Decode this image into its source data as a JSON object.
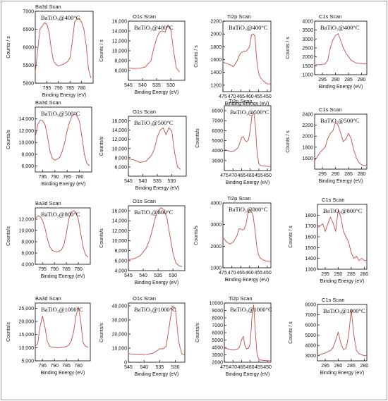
{
  "figure": {
    "line_color": "#c0504d",
    "frame_color": "#000000",
    "border_color": "#999999"
  },
  "chart_data": [
    {
      "type": "line",
      "title": "Ba3d Scan",
      "annotation": "BaTiO₃@400°C",
      "xlabel": "Binding Energy (eV)",
      "ylabel": "Counts / s",
      "xlim": [
        800,
        775
      ],
      "ylim": [
        5000,
        7000
      ],
      "xticks": [
        795,
        790,
        785,
        780
      ],
      "yticks": [
        5000,
        5500,
        6000,
        6500,
        7000
      ],
      "ytick_format": "plain",
      "x": [
        800,
        798,
        796,
        795,
        794,
        793,
        792,
        791,
        790,
        789,
        788,
        787,
        786,
        785,
        784,
        783,
        782,
        781,
        780,
        779,
        778,
        777,
        776
      ],
      "y": [
        5300,
        6500,
        6680,
        6650,
        6400,
        5900,
        5600,
        5520,
        5480,
        5500,
        5520,
        5560,
        5600,
        5700,
        6150,
        6700,
        6780,
        6800,
        6700,
        6500,
        6050,
        5400,
        5150
      ]
    },
    {
      "type": "line",
      "title": "O1s Scan",
      "annotation": "BaTiO₃@400°C",
      "xlabel": "Binding Energy (eV)",
      "ylabel": "Counts / s",
      "xlim": [
        545,
        525
      ],
      "ylim": [
        4000,
        16000
      ],
      "xticks": [
        545,
        540,
        535,
        530
      ],
      "yticks": [
        6000,
        8000,
        10000,
        12000,
        14000,
        16000
      ],
      "ytick_format": "comma",
      "x": [
        545,
        543,
        541,
        539,
        537,
        536,
        535,
        534,
        533,
        532,
        531,
        530,
        529,
        528,
        527
      ],
      "y": [
        6500,
        6400,
        6450,
        6700,
        8000,
        10500,
        12500,
        13800,
        14000,
        13800,
        15200,
        14500,
        10000,
        6500,
        5800
      ]
    },
    {
      "type": "line",
      "title": "Ti2p Scan",
      "annotation": "BaTiO₃@400°C",
      "xlabel": "Binding Energy (eV)",
      "ylabel": "Counts / s",
      "xlim": [
        475,
        448
      ],
      "ylim": [
        1100,
        2200
      ],
      "xticks": [
        475,
        470,
        465,
        460,
        455,
        450
      ],
      "yticks": [
        1200,
        1400,
        1600,
        1800,
        2000,
        2200
      ],
      "ytick_format": "plain",
      "x": [
        475,
        473,
        471,
        469,
        467,
        466,
        465,
        464,
        463,
        462,
        461,
        460,
        459,
        458,
        457,
        456,
        455,
        454,
        452,
        450,
        448
      ],
      "y": [
        1560,
        1540,
        1520,
        1490,
        1580,
        1650,
        1700,
        1720,
        1720,
        1730,
        1760,
        1800,
        1980,
        2000,
        1970,
        1600,
        1400,
        1320,
        1260,
        1220,
        1220
      ]
    },
    {
      "type": "line",
      "title": "C1s Scan",
      "annotation": "BaTiO₃@400°C",
      "xlabel": "Binding Energy (eV)",
      "ylabel": "Counts / s",
      "xlim": [
        298,
        278
      ],
      "ylim": [
        1000,
        4000
      ],
      "xticks": [
        295,
        290,
        285,
        280
      ],
      "yticks": [
        1000,
        1500,
        2000,
        2500,
        3000,
        3500,
        4000
      ],
      "ytick_format": "plain",
      "x": [
        298,
        296,
        294,
        293,
        292,
        291,
        290,
        289,
        288,
        287,
        286,
        285,
        284,
        282,
        280,
        278
      ],
      "y": [
        1550,
        1560,
        1600,
        1800,
        2500,
        2950,
        3200,
        3300,
        2900,
        2500,
        2200,
        2000,
        1800,
        1650,
        1620,
        1600
      ]
    },
    {
      "type": "line",
      "title": "Ba3d Scan",
      "annotation": "BaTiO₃@500°C",
      "xlabel": "Binding Energy (eV)",
      "ylabel": "Counts/s",
      "xlim": [
        798,
        775
      ],
      "ylim": [
        5000,
        16000
      ],
      "xticks": [
        795,
        790,
        785,
        780
      ],
      "yticks": [
        6000,
        8000,
        10000,
        12000,
        14000
      ],
      "ytick_format": "comma",
      "x": [
        798,
        797,
        796,
        795,
        794,
        793,
        792,
        791,
        790,
        789,
        788,
        787,
        786,
        785,
        784,
        783,
        782,
        781,
        780,
        779,
        778,
        777,
        776
      ],
      "y": [
        11000,
        13000,
        13800,
        13700,
        13000,
        11000,
        8500,
        7300,
        7000,
        7200,
        7500,
        8500,
        10000,
        12000,
        13500,
        14500,
        14800,
        14500,
        13600,
        11000,
        8000,
        6500,
        6100
      ]
    },
    {
      "type": "line",
      "title": "O1s Scan",
      "annotation": "BaTiO₃@500°C",
      "xlabel": "Binding Energy (eV)",
      "ylabel": "Counts/s",
      "xlim": [
        545,
        525
      ],
      "ylim": [
        4000,
        17000
      ],
      "xticks": [
        545,
        540,
        535,
        530
      ],
      "yticks": [
        6000,
        8000,
        10000,
        12000,
        14000,
        16000
      ],
      "ytick_format": "comma",
      "x": [
        545,
        543,
        541,
        539,
        537,
        536,
        535,
        534,
        533,
        532,
        531,
        530,
        529,
        528,
        527
      ],
      "y": [
        7800,
        7500,
        7000,
        7200,
        8500,
        10000,
        12500,
        14000,
        14500,
        13000,
        14500,
        13800,
        9000,
        6000,
        5500
      ]
    },
    {
      "type": "line",
      "title": "Ti2p Scan",
      "annotation": "BaTiO₃@500°C",
      "xlabel": "Binding Energy (eV)",
      "ylabel": "Counts/s",
      "xlim": [
        475,
        448
      ],
      "ylim": [
        2000,
        8500
      ],
      "xticks": [
        475,
        470,
        465,
        460,
        455,
        450
      ],
      "yticks": [
        3000,
        4000,
        5000,
        6000,
        7000,
        8000
      ],
      "ytick_format": "plain",
      "x": [
        475,
        473,
        471,
        469,
        467,
        466,
        465,
        464,
        463,
        462,
        461,
        460,
        459,
        458,
        457,
        456,
        455,
        454,
        452,
        450,
        448
      ],
      "y": [
        4100,
        4000,
        3900,
        4000,
        4300,
        4800,
        5300,
        5400,
        5000,
        4900,
        5100,
        6000,
        7500,
        7900,
        6500,
        3800,
        2700,
        2500,
        2450,
        2420,
        2400
      ]
    },
    {
      "type": "line",
      "title": "C1s Scan",
      "annotation": "BaTiO₃@500°C",
      "xlabel": "Binding Energy (eV)",
      "ylabel": "Counts / s",
      "xlim": [
        298,
        278
      ],
      "ylim": [
        1400,
        2400
      ],
      "xticks": [
        295,
        290,
        285,
        280
      ],
      "yticks": [
        1600,
        1800,
        2000,
        2200,
        2400
      ],
      "ytick_format": "plain",
      "x": [
        298,
        296,
        294,
        293,
        292,
        291,
        290,
        289,
        288,
        287,
        286,
        285,
        284,
        283,
        282,
        281,
        280,
        278
      ],
      "y": [
        1550,
        1700,
        1800,
        1950,
        2050,
        2100,
        2250,
        2200,
        2050,
        1900,
        1950,
        2050,
        1950,
        1750,
        1600,
        1520,
        1480,
        1460
      ]
    },
    {
      "type": "line",
      "title": "Ba3d Scan",
      "annotation": "BaTiO₃@800°C",
      "xlabel": "Binding Energy (eV)",
      "ylabel": "Counts/s",
      "xlim": [
        798,
        775
      ],
      "ylim": [
        4000,
        14000
      ],
      "xticks": [
        795,
        790,
        785,
        780
      ],
      "yticks": [
        4000,
        6000,
        8000,
        10000,
        12000
      ],
      "ytick_format": "comma",
      "x": [
        798,
        797,
        796,
        795,
        794,
        793,
        792,
        791,
        790,
        789,
        788,
        787,
        786,
        785,
        784,
        783,
        782,
        781,
        780,
        779,
        778,
        777,
        776
      ],
      "y": [
        12000,
        12600,
        12500,
        11800,
        10500,
        8600,
        7200,
        6500,
        6300,
        6200,
        6300,
        6600,
        7500,
        9500,
        12000,
        13300,
        13500,
        13200,
        12000,
        9500,
        7000,
        5700,
        5300
      ]
    },
    {
      "type": "line",
      "title": "O1s Scan",
      "annotation": "BaTiO₃@800°C",
      "xlabel": "Binding Energy (eV)",
      "ylabel": "Counts/s",
      "xlim": [
        545,
        526
      ],
      "ylim": [
        4000,
        17000
      ],
      "xticks": [
        545,
        540,
        535,
        530
      ],
      "yticks": [
        4000,
        6000,
        8000,
        10000,
        12000,
        14000,
        16000
      ],
      "ytick_format": "comma",
      "x": [
        545,
        543,
        541,
        539,
        538,
        537,
        536,
        535,
        534,
        533,
        532,
        531,
        530,
        529,
        528,
        527
      ],
      "y": [
        6200,
        6400,
        7000,
        8500,
        10000,
        12000,
        14500,
        16000,
        16600,
        16200,
        14500,
        11000,
        7500,
        5500,
        5000,
        4800
      ]
    },
    {
      "type": "line",
      "title": "Ti2p Scan",
      "annotation": "BaTiO₃@800°C",
      "xlabel": "Binding Energy (eV)",
      "ylabel": "Counts/s",
      "xlim": [
        475,
        448
      ],
      "ylim": [
        1000,
        4000
      ],
      "xticks": [
        475,
        470,
        465,
        460,
        455,
        450
      ],
      "yticks": [
        1000,
        2000,
        3000,
        4000
      ],
      "ytick_format": "plain",
      "x": [
        475,
        473,
        471,
        469,
        467,
        466,
        465,
        464,
        463,
        462,
        461,
        460,
        459,
        458,
        457,
        456,
        455,
        454,
        452,
        450,
        448
      ],
      "y": [
        2400,
        2200,
        2100,
        2200,
        2500,
        2800,
        2800,
        2750,
        2800,
        3000,
        3500,
        3700,
        3600,
        3400,
        2800,
        2000,
        1600,
        1450,
        1350,
        1300,
        1300
      ]
    },
    {
      "type": "line",
      "title": "C1s Scan",
      "annotation": "BaTiO₃@800°C",
      "xlabel": "Binding Energy (eV)",
      "ylabel": "Counts / s",
      "xlim": [
        298,
        279
      ],
      "ylim": [
        1300,
        1900
      ],
      "xticks": [
        295,
        290,
        285,
        280
      ],
      "yticks": [
        1300,
        1400,
        1500,
        1600,
        1700,
        1800
      ],
      "ytick_format": "plain",
      "x": [
        298,
        297,
        296,
        295,
        294,
        293,
        292,
        291,
        290,
        289,
        288,
        287,
        286,
        285,
        284,
        283,
        282,
        281,
        280,
        279
      ],
      "y": [
        1680,
        1700,
        1720,
        1650,
        1720,
        1780,
        1730,
        1650,
        1850,
        1780,
        1650,
        1600,
        1550,
        1450,
        1400,
        1420,
        1380,
        1400,
        1380,
        1380
      ]
    },
    {
      "type": "line",
      "title": "Ba3d Scan",
      "annotation": "BaTiO₃@1000°C",
      "xlabel": "Binding Energy (eV)",
      "ylabel": "Counts/s",
      "xlim": [
        798,
        775
      ],
      "ylim": [
        5000,
        27000
      ],
      "xticks": [
        795,
        790,
        785,
        780
      ],
      "yticks": [
        5000,
        10000,
        15000,
        20000,
        25000
      ],
      "ytick_format": "comma",
      "x": [
        798,
        797,
        796,
        795,
        794,
        793,
        792,
        791,
        790,
        789,
        788,
        787,
        786,
        785,
        784,
        783,
        782,
        781,
        780,
        779,
        778,
        777,
        776
      ],
      "y": [
        10500,
        11500,
        18000,
        22000,
        18000,
        12500,
        10500,
        10200,
        10100,
        10000,
        10000,
        10100,
        10200,
        10500,
        11000,
        12500,
        16000,
        22000,
        25500,
        20000,
        12000,
        10500,
        10200
      ]
    },
    {
      "type": "line",
      "title": "O1s Scan",
      "annotation": "BaTiO₃@1000°C",
      "xlabel": "Binding Energy (eV)",
      "ylabel": "Counts/s",
      "xlim": [
        545,
        527
      ],
      "ylim": [
        0,
        42000
      ],
      "xticks": [
        545,
        540,
        535,
        530
      ],
      "yticks": [
        0,
        10000,
        20000,
        30000,
        40000
      ],
      "ytick_format": "comma",
      "x": [
        545,
        543,
        541,
        539,
        537,
        536,
        535,
        534,
        533,
        532,
        531,
        530,
        529,
        528,
        527
      ],
      "y": [
        6000,
        5800,
        5500,
        5600,
        6500,
        8000,
        9500,
        9500,
        11000,
        25000,
        40000,
        38000,
        15000,
        6000,
        5000
      ]
    },
    {
      "type": "line",
      "title": "Ti2p Scan",
      "annotation": "BaTiO₃@1000°C",
      "xlabel": "Binding Energy (eV)",
      "ylabel": "Counts/s",
      "xlim": [
        475,
        448
      ],
      "ylim": [
        2000,
        10000
      ],
      "xticks": [
        475,
        470,
        465,
        460,
        455,
        450
      ],
      "yticks": [
        2000,
        3000,
        4000,
        5000,
        6000,
        7000,
        8000,
        9000,
        10000
      ],
      "ytick_format": "plain",
      "x": [
        475,
        473,
        471,
        469,
        467,
        466,
        465,
        464,
        463,
        462,
        461,
        460,
        459,
        458,
        457,
        456,
        455,
        454,
        452,
        450,
        448
      ],
      "y": [
        3900,
        3800,
        3700,
        3700,
        3800,
        4200,
        5000,
        5500,
        4200,
        3800,
        3900,
        4500,
        8000,
        9700,
        6000,
        3000,
        2400,
        2300,
        2250,
        2200,
        2200
      ]
    },
    {
      "type": "line",
      "title": "C1s Scan",
      "annotation": "BaTiO₃@1000°C",
      "xlabel": "Binding Energy (eV)",
      "ylabel": "Counts / s",
      "xlim": [
        298,
        279
      ],
      "ylim": [
        2500,
        8000
      ],
      "xticks": [
        295,
        290,
        285,
        280
      ],
      "yticks": [
        3000,
        4000,
        5000,
        6000,
        7000,
        8000
      ],
      "ytick_format": "plain",
      "x": [
        298,
        297,
        296,
        295,
        294,
        293,
        292,
        291,
        290,
        289,
        288,
        287,
        286,
        285,
        284,
        283,
        282,
        281,
        280,
        279
      ],
      "y": [
        3000,
        3100,
        3200,
        3250,
        3400,
        3500,
        3800,
        4500,
        5300,
        4200,
        3600,
        3700,
        5000,
        7500,
        5000,
        3500,
        3200,
        3100,
        3000,
        3000
      ]
    }
  ]
}
